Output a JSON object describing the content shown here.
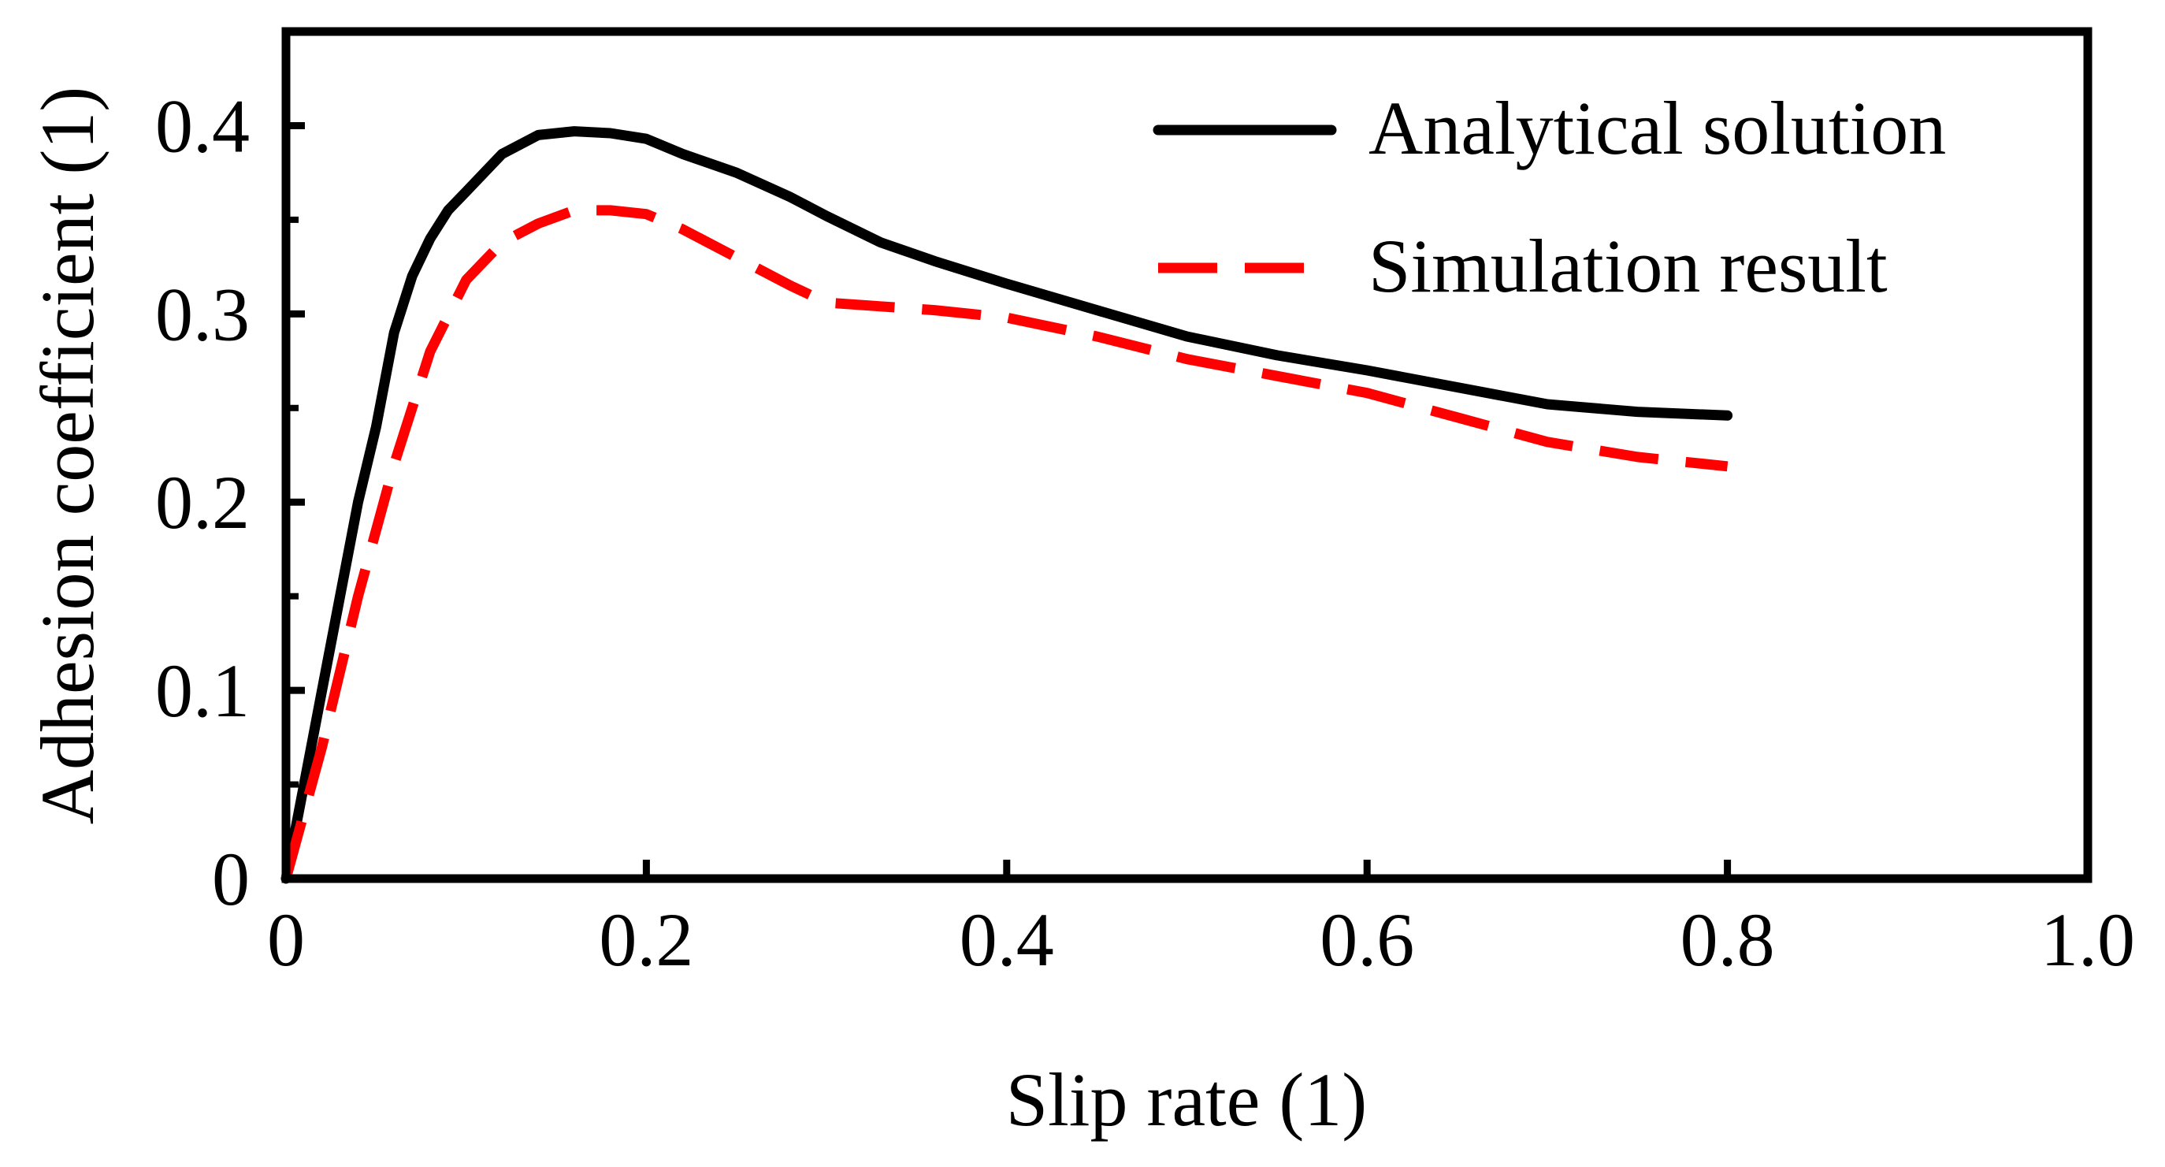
{
  "chart_data": {
    "type": "line",
    "title": "",
    "xlabel": "Slip rate (1)",
    "ylabel": "Adhesion coefficient (1)",
    "xlim": [
      0,
      1.0
    ],
    "ylim": [
      0,
      0.45
    ],
    "x_ticks": [
      0,
      0.2,
      0.4,
      0.6,
      0.8,
      1.0
    ],
    "x_tick_labels": [
      "0",
      "0.2",
      "0.4",
      "0.6",
      "0.8",
      "1.0"
    ],
    "y_ticks": [
      0,
      0.1,
      0.2,
      0.3,
      0.4
    ],
    "y_tick_labels": [
      "0",
      "0.1",
      "0.2",
      "0.3",
      "0.4"
    ],
    "y_minor_ticks": [
      0.05,
      0.15,
      0.25,
      0.35
    ],
    "x_minor_ticks": [
      0.1,
      0.3,
      0.5,
      0.7,
      0.9
    ],
    "grid": false,
    "legend_position": "top-right",
    "series": [
      {
        "name": "Analytical solution",
        "color": "#000000",
        "style": "solid",
        "x": [
          0,
          0.01,
          0.02,
          0.03,
          0.04,
          0.05,
          0.06,
          0.07,
          0.08,
          0.09,
          0.1,
          0.12,
          0.14,
          0.16,
          0.18,
          0.2,
          0.22,
          0.25,
          0.28,
          0.3,
          0.33,
          0.36,
          0.4,
          0.45,
          0.5,
          0.55,
          0.6,
          0.65,
          0.7,
          0.75,
          0.8
        ],
        "y": [
          0,
          0.05,
          0.1,
          0.15,
          0.2,
          0.24,
          0.29,
          0.32,
          0.34,
          0.355,
          0.365,
          0.385,
          0.395,
          0.397,
          0.396,
          0.393,
          0.385,
          0.375,
          0.362,
          0.352,
          0.338,
          0.328,
          0.316,
          0.302,
          0.288,
          0.278,
          0.27,
          0.261,
          0.252,
          0.248,
          0.246
        ]
      },
      {
        "name": "Simulation result",
        "color": "#ff0000",
        "style": "dashed",
        "x": [
          0,
          0.02,
          0.04,
          0.06,
          0.08,
          0.1,
          0.12,
          0.14,
          0.16,
          0.18,
          0.2,
          0.22,
          0.25,
          0.28,
          0.3,
          0.33,
          0.36,
          0.4,
          0.45,
          0.5,
          0.55,
          0.6,
          0.65,
          0.7,
          0.75,
          0.8
        ],
        "y": [
          0,
          0.07,
          0.15,
          0.22,
          0.28,
          0.318,
          0.338,
          0.348,
          0.355,
          0.355,
          0.353,
          0.345,
          0.33,
          0.315,
          0.306,
          0.304,
          0.302,
          0.298,
          0.288,
          0.276,
          0.267,
          0.258,
          0.245,
          0.232,
          0.224,
          0.219
        ]
      }
    ]
  }
}
